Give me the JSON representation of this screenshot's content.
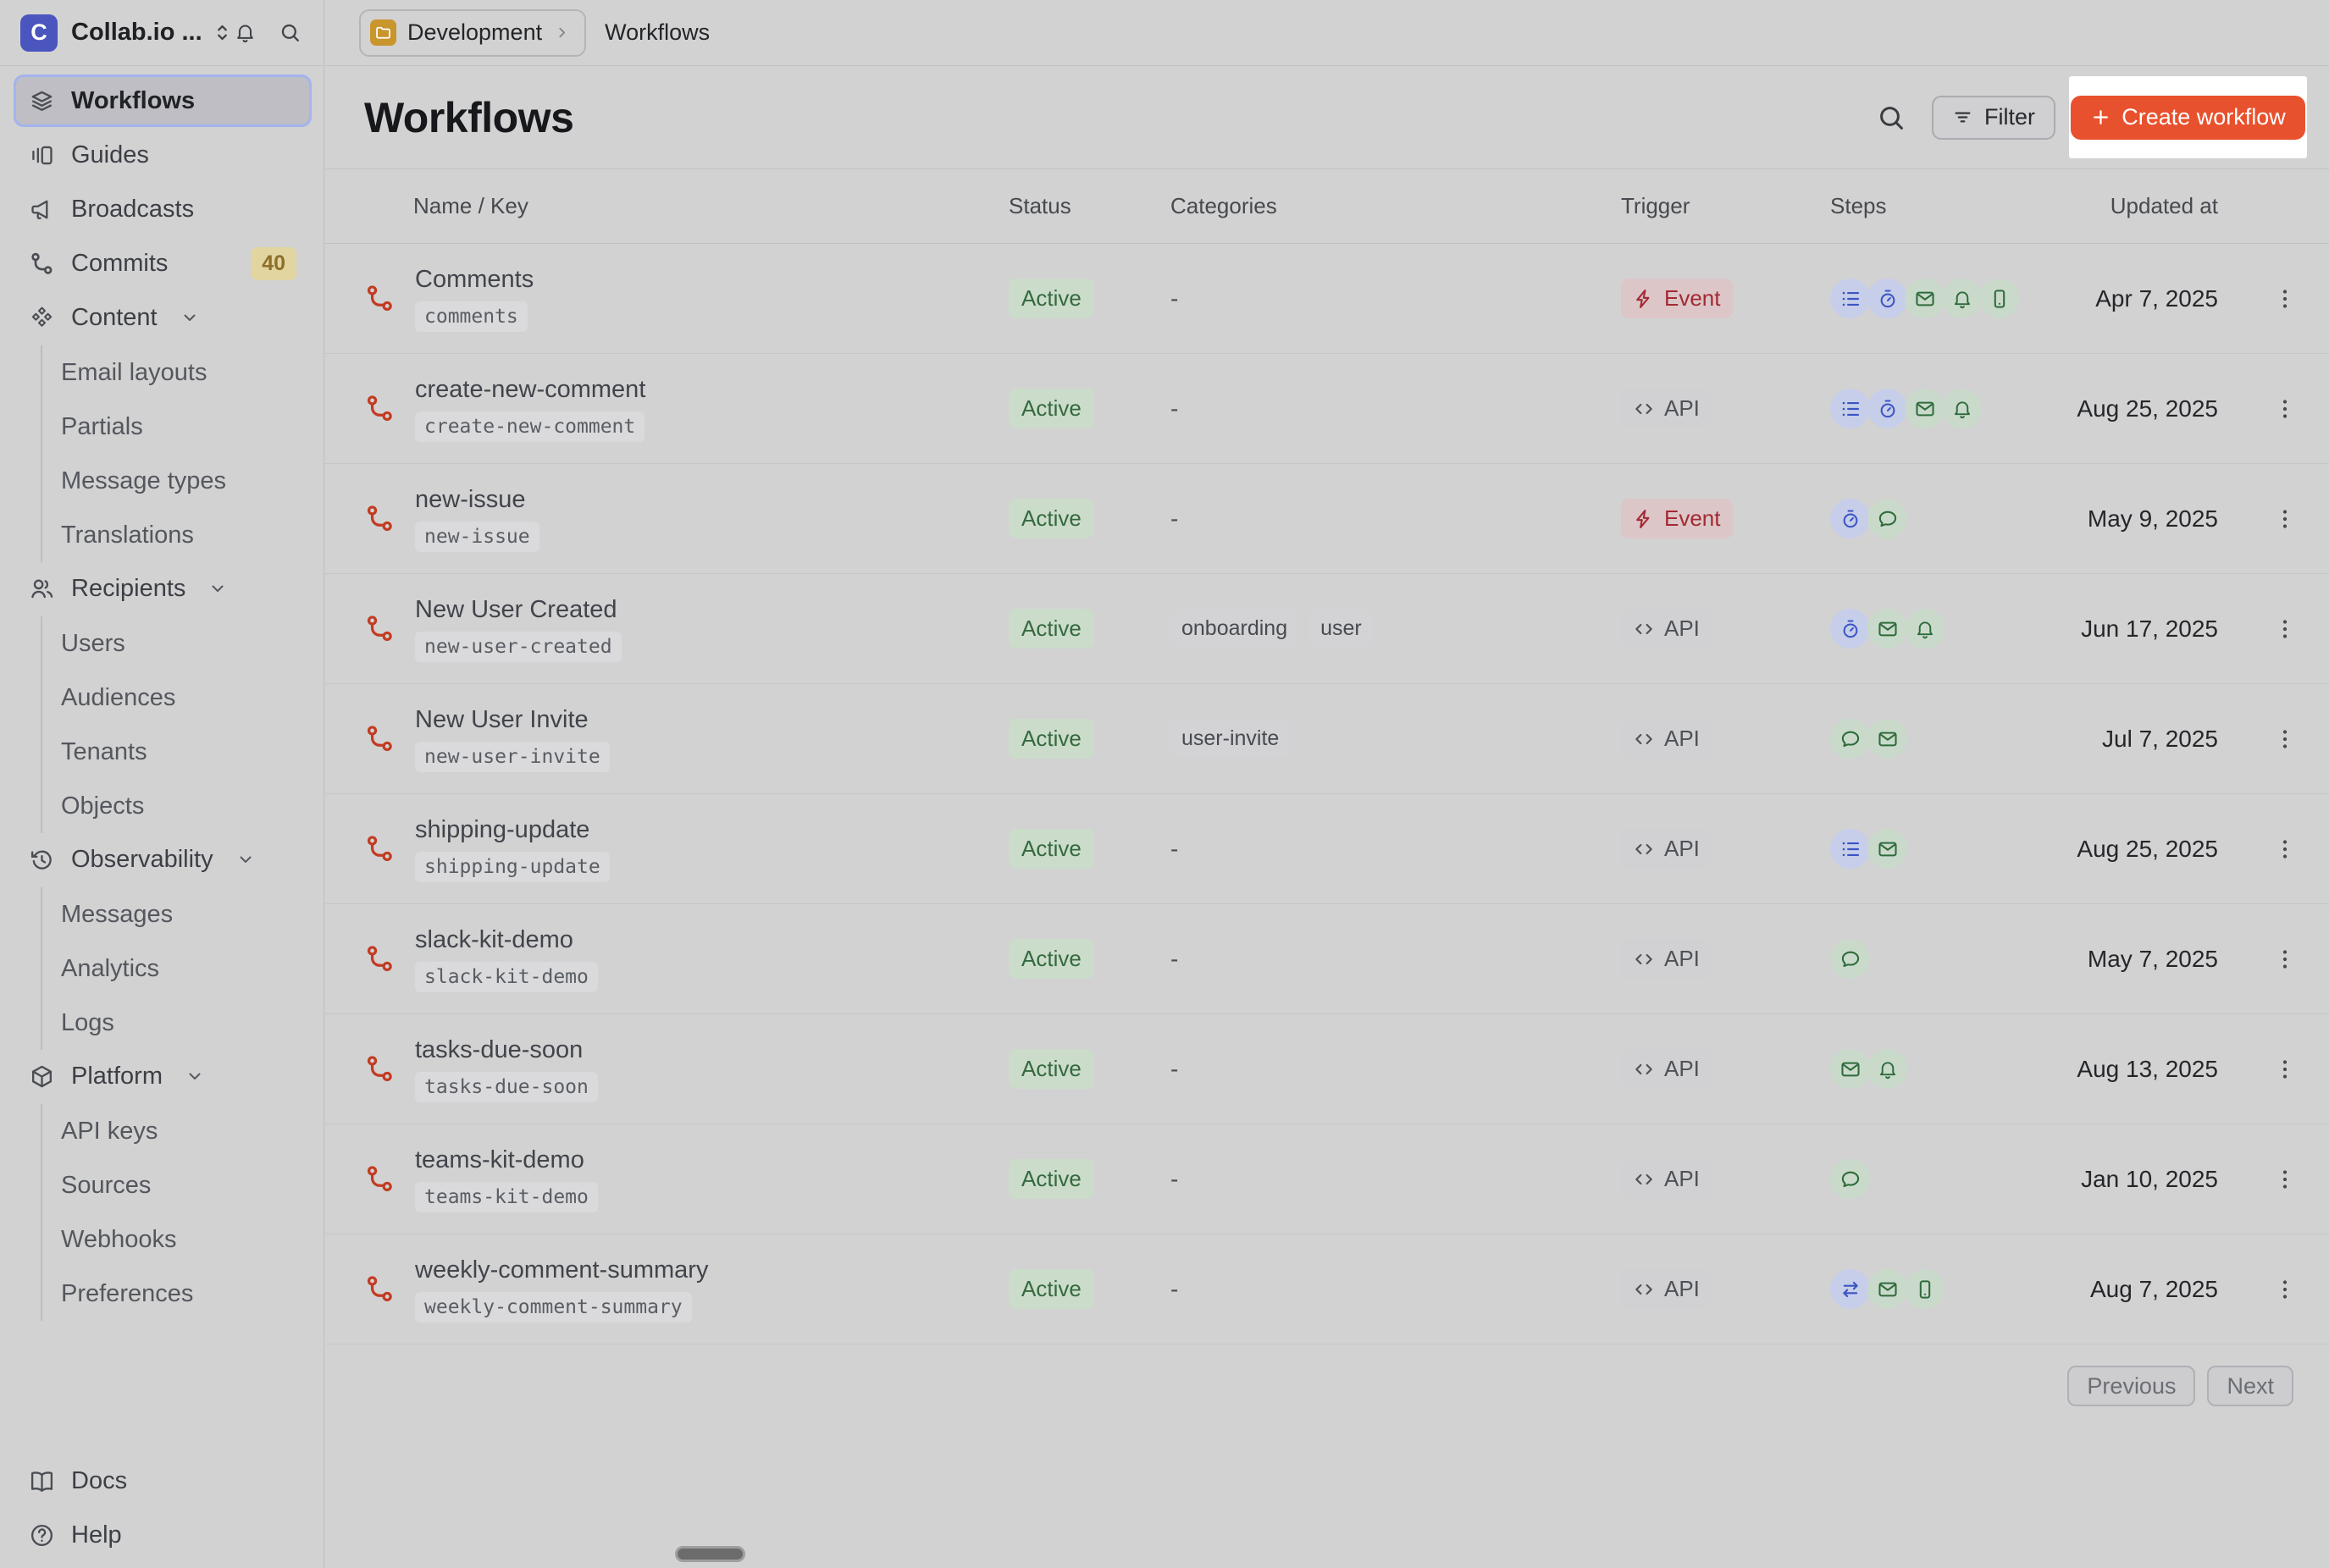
{
  "app": {
    "workspace_name": "Collab.io ...",
    "logo_letter": "C"
  },
  "sidebar": {
    "items": [
      {
        "label": "Workflows",
        "icon": "layers",
        "selected": true
      },
      {
        "label": "Guides",
        "icon": "guides"
      },
      {
        "label": "Broadcasts",
        "icon": "megaphone"
      },
      {
        "label": "Commits",
        "icon": "branch",
        "badge": "40"
      },
      {
        "label": "Content",
        "icon": "diamonds",
        "expandable": true,
        "children": [
          "Email layouts",
          "Partials",
          "Message types",
          "Translations"
        ]
      },
      {
        "label": "Recipients",
        "icon": "users",
        "expandable": true,
        "children": [
          "Users",
          "Audiences",
          "Tenants",
          "Objects"
        ]
      },
      {
        "label": "Observability",
        "icon": "history",
        "expandable": true,
        "children": [
          "Messages",
          "Analytics",
          "Logs"
        ]
      },
      {
        "label": "Platform",
        "icon": "box",
        "expandable": true,
        "children": [
          "API keys",
          "Sources",
          "Webhooks",
          "Preferences"
        ]
      }
    ],
    "footer": [
      {
        "label": "Docs",
        "icon": "book"
      },
      {
        "label": "Help",
        "icon": "help"
      }
    ]
  },
  "breadcrumb": {
    "project": "Development",
    "page": "Workflows"
  },
  "header": {
    "title": "Workflows",
    "filter_label": "Filter",
    "create_label": "Create workflow"
  },
  "table": {
    "columns": [
      "Name / Key",
      "Status",
      "Categories",
      "Trigger",
      "Steps",
      "Updated at"
    ],
    "rows": [
      {
        "name": "Comments",
        "key": "comments",
        "status": "Active",
        "categories": [],
        "trigger": "Event",
        "steps": [
          "list",
          "stopwatch",
          "mail",
          "bell",
          "phone"
        ],
        "updated": "Apr 7, 2025"
      },
      {
        "name": "create-new-comment",
        "key": "create-new-comment",
        "status": "Active",
        "categories": [],
        "trigger": "API",
        "steps": [
          "list",
          "stopwatch",
          "mail",
          "bell"
        ],
        "updated": "Aug 25, 2025"
      },
      {
        "name": "new-issue",
        "key": "new-issue",
        "status": "Active",
        "categories": [],
        "trigger": "Event",
        "steps": [
          "stopwatch",
          "chat"
        ],
        "updated": "May 9, 2025"
      },
      {
        "name": "New User Created",
        "key": "new-user-created",
        "status": "Active",
        "categories": [
          "onboarding",
          "user"
        ],
        "trigger": "API",
        "steps": [
          "stopwatch",
          "mail",
          "bell"
        ],
        "updated": "Jun 17, 2025"
      },
      {
        "name": "New User Invite",
        "key": "new-user-invite",
        "status": "Active",
        "categories": [
          "user-invite"
        ],
        "trigger": "API",
        "steps": [
          "chat",
          "mail"
        ],
        "updated": "Jul 7, 2025"
      },
      {
        "name": "shipping-update",
        "key": "shipping-update",
        "status": "Active",
        "categories": [],
        "trigger": "API",
        "steps": [
          "list",
          "mail"
        ],
        "updated": "Aug 25, 2025"
      },
      {
        "name": "slack-kit-demo",
        "key": "slack-kit-demo",
        "status": "Active",
        "categories": [],
        "trigger": "API",
        "steps": [
          "chat"
        ],
        "updated": "May 7, 2025"
      },
      {
        "name": "tasks-due-soon",
        "key": "tasks-due-soon",
        "status": "Active",
        "categories": [],
        "trigger": "API",
        "steps": [
          "mail",
          "bell"
        ],
        "updated": "Aug 13, 2025"
      },
      {
        "name": "teams-kit-demo",
        "key": "teams-kit-demo",
        "status": "Active",
        "categories": [],
        "trigger": "API",
        "steps": [
          "chat"
        ],
        "updated": "Jan 10, 2025"
      },
      {
        "name": "weekly-comment-summary",
        "key": "weekly-comment-summary",
        "status": "Active",
        "categories": [],
        "trigger": "API",
        "steps": [
          "swap",
          "mail",
          "phone"
        ],
        "updated": "Aug 7, 2025"
      }
    ],
    "empty_categories_placeholder": "-"
  },
  "pagination": {
    "previous": "Previous",
    "next": "Next"
  },
  "colors": {
    "page-bg": "#D2D2D2",
    "accent": "#E8512D",
    "spotlight": "#FFFFFF",
    "active-bg": "#CBDCCA",
    "active-text": "#35693F",
    "event-bg": "#DCC6C8",
    "event-text": "#A32A33",
    "api-bg": "#D1D1D4",
    "api-text": "#4E5156",
    "step-blue-bg": "#C7CEEA",
    "step-blue-icon": "#3A55C4",
    "step-green-bg": "#C9DACB",
    "step-green-icon": "#2E6B3A",
    "workflow-icon": "#C23B22",
    "key-bg": "#DADADC",
    "key-text": "#595D63",
    "category-bg": "#D3D3D6",
    "category-text": "#474A4F",
    "badge-bg": "#E2D5A0",
    "badge-text": "#8E6F2A",
    "selected-bg": "#BEBEC4",
    "selected-border": "#A3B4EE",
    "logo-bg": "#4A55BE",
    "folder-bg": "#C9952D"
  }
}
